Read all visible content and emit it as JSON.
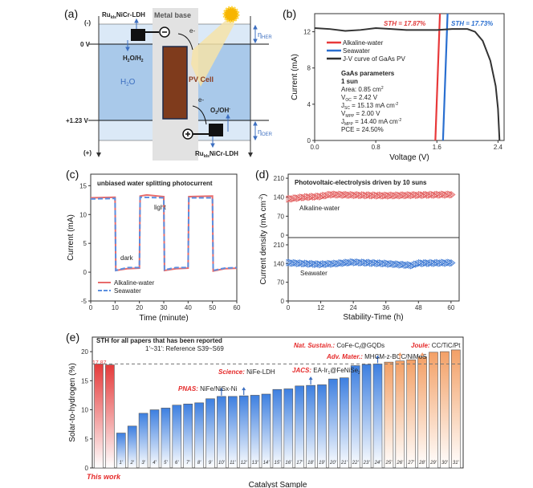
{
  "panel_labels": [
    "(a)",
    "(b)",
    "(c)",
    "(d)",
    "(e)"
  ],
  "diagram_a": {
    "minus": "(-)",
    "plus": "(+)",
    "zero_v": "0 V",
    "v123": "+1.23 V",
    "cat_top": [
      "Ru",
      "lds",
      "NiCr-LDH"
    ],
    "cat_bottom": [
      "Ru",
      "lds",
      "NiCr-LDH"
    ],
    "metal_base": "Metal base",
    "electron": "e-",
    "h2o_h2": [
      "H",
      "2",
      "O/H",
      "2"
    ],
    "h2o": [
      "H",
      "2",
      "O"
    ],
    "pv_cell": "PV Cell",
    "o2_oh": [
      "O",
      "2",
      "/OH",
      "-"
    ],
    "eta_her": [
      "η",
      "HER"
    ],
    "eta_oer": [
      "η",
      "OER"
    ],
    "colors": {
      "band_light": "#dbe9f7",
      "band_mid": "#a9c9ea",
      "metal": "#e2e2e2",
      "pv": "#7f3b1c"
    }
  },
  "chart_data": [
    {
      "id": "b",
      "type": "line",
      "xlabel": "Voltage (V)",
      "ylabel": "Current (mA)",
      "xlim": [
        0,
        2.48
      ],
      "ylim": [
        0,
        14
      ],
      "xticks": [
        0.0,
        0.8,
        1.6,
        2.4
      ],
      "xtick_labels": [
        "0.0",
        "0.8",
        "1.6",
        "2.4"
      ],
      "yticks": [
        0,
        4,
        8,
        12
      ],
      "ytick_labels": [
        "0",
        "4",
        "8",
        "12"
      ],
      "series": [
        {
          "name": "Alkaline-water",
          "color": "#e8393a",
          "points": [
            [
              1.58,
              0
            ],
            [
              1.64,
              14
            ]
          ]
        },
        {
          "name": "Seawater",
          "color": "#2a6fd0",
          "points": [
            [
              1.68,
              0
            ],
            [
              1.74,
              14
            ]
          ]
        },
        {
          "name": "J-V curve of GaAs PV",
          "color": "#333333",
          "points": [
            [
              0,
              12.4
            ],
            [
              0.2,
              12.3
            ],
            [
              0.4,
              12.1
            ],
            [
              0.6,
              12.2
            ],
            [
              0.8,
              12.4
            ],
            [
              1.0,
              12.3
            ],
            [
              1.2,
              12.2
            ],
            [
              1.4,
              12.2
            ],
            [
              1.6,
              12.2
            ],
            [
              1.8,
              12.3
            ],
            [
              2.0,
              12.3
            ],
            [
              2.1,
              12.0
            ],
            [
              2.2,
              11.0
            ],
            [
              2.3,
              8.8
            ],
            [
              2.37,
              6.0
            ],
            [
              2.4,
              3.5
            ],
            [
              2.42,
              0
            ]
          ]
        }
      ],
      "annotations": [
        "STH = 17.87%",
        "STH = 17.73%"
      ],
      "params": {
        "title": "GaAs parameters",
        "sun": "1 sun",
        "area": [
          "Area: 0.85 cm",
          "2"
        ],
        "voc": [
          "V",
          "OC",
          " = 2.42 V"
        ],
        "jsc": [
          "J",
          "SC",
          " = 15.13 mA cm",
          "-2"
        ],
        "vmpp": [
          "V",
          "MPP",
          " = 2.00 V"
        ],
        "jmpp": [
          "J",
          "MPP",
          " = 14.40 mA cm",
          "-2"
        ],
        "pce": "PCE = 24.50%"
      }
    },
    {
      "id": "c",
      "type": "line",
      "title": "unbiased water splitting photocurrent",
      "xlabel": "Time (minute)",
      "ylabel": "Current (mA)",
      "xlim": [
        0,
        60
      ],
      "ylim": [
        -5,
        17
      ],
      "xticks": [
        0,
        10,
        20,
        30,
        40,
        50,
        60
      ],
      "xtick_labels": [
        "0",
        "10",
        "20",
        "30",
        "40",
        "50",
        "60"
      ],
      "yticks": [
        -5,
        0,
        5,
        10,
        15
      ],
      "ytick_labels": [
        "-5",
        "0",
        "5",
        "10",
        "15"
      ],
      "annotations": [
        "light",
        "dark"
      ],
      "series": [
        {
          "name": "Alkaline-water",
          "color": "#e86b6b",
          "dash": false,
          "points": [
            [
              0,
              12.9
            ],
            [
              10,
              13.0
            ],
            [
              10.3,
              0.3
            ],
            [
              15,
              0.6
            ],
            [
              20,
              0.7
            ],
            [
              20.3,
              13.2
            ],
            [
              23,
              13.4
            ],
            [
              30,
              13.1
            ],
            [
              30.3,
              0.3
            ],
            [
              35,
              0.6
            ],
            [
              40,
              0.7
            ],
            [
              40.3,
              13.1
            ],
            [
              50,
              13.2
            ],
            [
              50.3,
              0.2
            ],
            [
              55,
              0.6
            ],
            [
              60,
              0.7
            ]
          ]
        },
        {
          "name": "Seawater",
          "color": "#5b8fe0",
          "dash": true,
          "points": [
            [
              0,
              12.7
            ],
            [
              10,
              12.8
            ],
            [
              10.3,
              0.3
            ],
            [
              15,
              0.8
            ],
            [
              20,
              0.8
            ],
            [
              20.3,
              13.0
            ],
            [
              30,
              12.9
            ],
            [
              30.3,
              0.4
            ],
            [
              35,
              0.8
            ],
            [
              40,
              0.8
            ],
            [
              40.3,
              12.9
            ],
            [
              50,
              12.9
            ],
            [
              50.3,
              0.3
            ],
            [
              55,
              0.7
            ],
            [
              60,
              0.8
            ]
          ]
        }
      ]
    },
    {
      "id": "d",
      "type": "scatter",
      "title": "Photovoltaic-electrolysis driven by 10 suns",
      "xlabel": "Stability-Time (h)",
      "ylabel": "Current density (mA cm",
      "ylabel_sup": "-2",
      "ylabel_end": ")",
      "xlim": [
        0,
        63
      ],
      "ylim": [
        0,
        225
      ],
      "xticks": [
        0,
        12,
        24,
        36,
        48,
        60
      ],
      "xtick_labels": [
        "0",
        "12",
        "24",
        "36",
        "48",
        "60"
      ],
      "yticks": [
        0,
        70,
        140,
        210
      ],
      "ytick_labels": [
        "0",
        "70",
        "140",
        "210"
      ],
      "series": [
        {
          "name": "Alkaline-water",
          "color": "#e05050",
          "points": [
            [
              0,
              133
            ],
            [
              6,
              140
            ],
            [
              12,
              143
            ],
            [
              16,
              150
            ],
            [
              24,
              148
            ],
            [
              36,
              146
            ],
            [
              48,
              148
            ],
            [
              61,
              150
            ]
          ]
        },
        {
          "name": "Seawater",
          "color": "#2f6fd0",
          "points": [
            [
              0,
              143
            ],
            [
              6,
              140
            ],
            [
              12,
              137
            ],
            [
              18,
              140
            ],
            [
              24,
              145
            ],
            [
              36,
              140
            ],
            [
              46,
              133
            ],
            [
              48,
              141
            ],
            [
              61,
              143
            ]
          ]
        }
      ]
    },
    {
      "id": "e",
      "type": "bar",
      "title": "STH for all papers that has been reported",
      "subtitle": "1'~31': Reference S39~S69",
      "xlabel": "Catalyst Sample",
      "ylabel": "Solar-to-hydrogen (%)",
      "ylim": [
        0,
        22.5
      ],
      "yticks": [
        0,
        5,
        10,
        15,
        20
      ],
      "ytick_labels": [
        "0",
        "5",
        "10",
        "15",
        "20"
      ],
      "reference_line": 17.87,
      "this_work_label": "This work",
      "value_label": "17.87",
      "categories": [
        "",
        "",
        "1'",
        "2'",
        "3'",
        "4'",
        "5'",
        "6'",
        "7'",
        "8'",
        "9'",
        "10'",
        "11'",
        "12'",
        "13'",
        "14'",
        "15'",
        "16'",
        "17'",
        "18'",
        "19'",
        "20'",
        "21'",
        "22'",
        "23'",
        "24'",
        "25'",
        "26'",
        "27'",
        "28'",
        "29'",
        "30'",
        "31'"
      ],
      "values": [
        17.87,
        17.73,
        6.0,
        7.2,
        9.4,
        10.0,
        10.3,
        10.8,
        11.0,
        11.2,
        11.9,
        12.3,
        12.3,
        12.4,
        12.5,
        12.7,
        13.5,
        13.6,
        14.1,
        14.2,
        14.3,
        15.3,
        15.5,
        17.6,
        17.8,
        17.9,
        18.2,
        18.4,
        18.6,
        19.1,
        19.9,
        20.0,
        20.3
      ],
      "colors": {
        "this_work": "#e53a3a",
        "reference": "#3d7fe0",
        "high": "#f3a066"
      },
      "annotations": [
        {
          "journal": "PNAS:",
          "text": "NiFe/NiSx-Ni",
          "bar": 10
        },
        {
          "journal": "Science:",
          "text": "NiFe-LDH",
          "bar": 12
        },
        {
          "journal": "JACS:",
          "text": "EA-Ir",
          "sub": "1",
          "text2": "@FeNiSe",
          "sub2": "2",
          "bar": 18
        },
        {
          "journal": "Adv. Mater.:",
          "text": "MHCM-z-BCC/NiMoS",
          "bar": 24
        },
        {
          "journal": "Nat. Sustain.:",
          "text": "CoFe-C",
          "sub": "f",
          "text2": "@GQDs",
          "bar": 26
        },
        {
          "journal": "Joule:",
          "text": "CC/TiC/Pt",
          "bar": 28
        }
      ]
    }
  ]
}
